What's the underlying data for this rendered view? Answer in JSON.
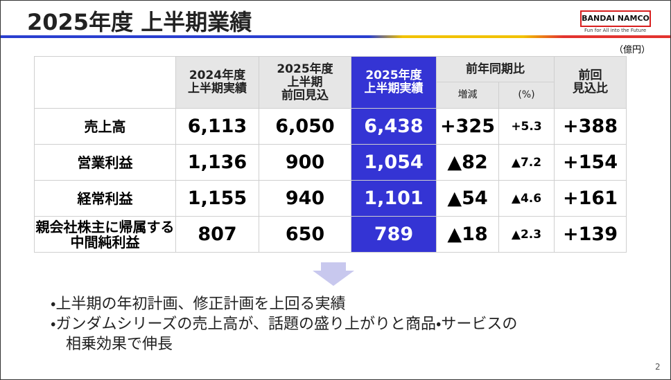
{
  "header": {
    "title": "2025年度 上半期業績",
    "logo": "BANDAI NAMCO",
    "tagline": "Fun for All into the Future"
  },
  "unit": "（億円）",
  "table": {
    "columns": [
      "2024年度\n上半期実績",
      "2025年度\n上半期\n前回見込",
      "2025年度\n上半期実績",
      "前年同期比",
      "前回\n見込比"
    ],
    "subcolumns": [
      "増減",
      "(%)"
    ],
    "rows": [
      [
        "売上高",
        "6,113",
        "6,050",
        "6,438",
        "+325",
        "+5.3",
        "+388"
      ],
      [
        "営業利益",
        "1,136",
        "900",
        "1,054",
        "▲82",
        "▲7.2",
        "+154"
      ],
      [
        "経常利益",
        "1,155",
        "940",
        "1,101",
        "▲54",
        "▲4.6",
        "+161"
      ],
      [
        "親会社株主に帰属する\n中間純利益",
        "807",
        "650",
        "789",
        "▲18",
        "▲2.3",
        "+139"
      ]
    ]
  },
  "bullets": [
    "・上半期の年初計画、修正計画を上回る実績",
    "・ガンダムシリーズの売上高が、話題の盛り上がりと商品・サービスの\n相乗効果で伸長"
  ],
  "page_number": "2"
}
